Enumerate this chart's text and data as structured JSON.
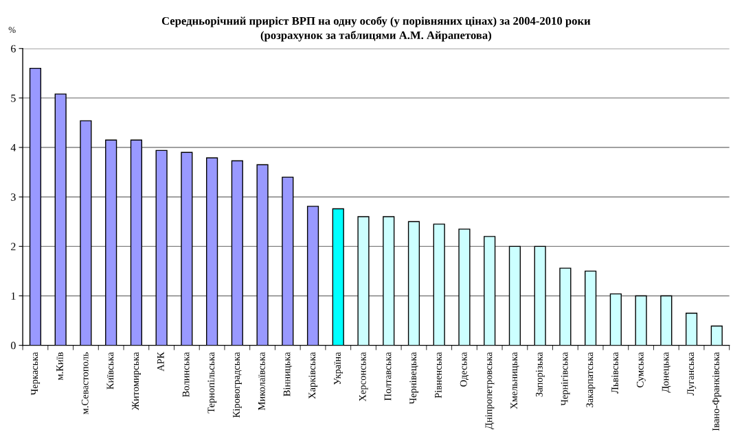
{
  "chart_data": {
    "type": "bar",
    "title": "Середньорічний приріст ВРП на одну особу (у порівняних цінах) за 2004-2010 роки\n(розрахунок за таблицями А.М. Айрапетова)",
    "ylabel": "%",
    "categories": [
      "Черкаська",
      "м.Київ",
      "м.Севастополь",
      "Київська",
      "Житомирська",
      "АРК",
      "Волинська",
      "Тернопільська",
      "Кіровоградська",
      "Миколаївська",
      "Вінницька",
      "Харківська",
      "Україна",
      "Херсонська",
      "Полтавська",
      "Чернівецька",
      "Рівненська",
      "Одеська",
      "Дніпропетровська",
      "Хмельницька",
      "Запорізька",
      "Чернігівська",
      "Закарпатська",
      "Львівська",
      "Сумська",
      "Донецька",
      "Луганська",
      "Івано-Франківська"
    ],
    "values": [
      5.6,
      5.08,
      4.54,
      4.15,
      4.15,
      3.94,
      3.9,
      3.79,
      3.73,
      3.65,
      3.4,
      2.81,
      2.76,
      2.6,
      2.6,
      2.5,
      2.45,
      2.35,
      2.2,
      2.0,
      2.0,
      1.56,
      1.5,
      1.04,
      1.0,
      1.0,
      0.65,
      0.39
    ],
    "colors": [
      "#9999ff",
      "#9999ff",
      "#9999ff",
      "#9999ff",
      "#9999ff",
      "#9999ff",
      "#9999ff",
      "#9999ff",
      "#9999ff",
      "#9999ff",
      "#9999ff",
      "#9999ff",
      "#00ffff",
      "#ccffff",
      "#ccffff",
      "#ccffff",
      "#ccffff",
      "#ccffff",
      "#ccffff",
      "#ccffff",
      "#ccffff",
      "#ccffff",
      "#ccffff",
      "#ccffff",
      "#ccffff",
      "#ccffff",
      "#ccffff",
      "#ccffff"
    ],
    "ylim": [
      0,
      6
    ],
    "yticks": [
      0,
      1,
      2,
      3,
      4,
      5,
      6
    ],
    "grid": "y"
  }
}
